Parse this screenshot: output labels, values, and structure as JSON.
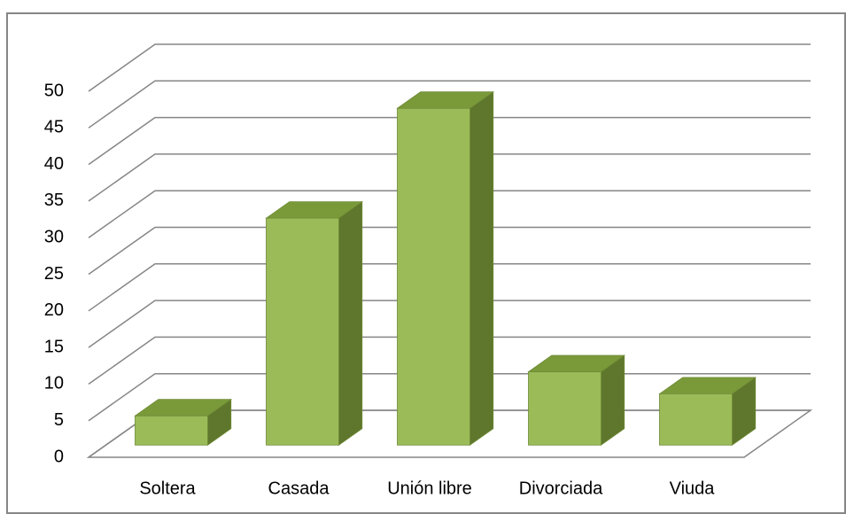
{
  "chart_data": {
    "type": "bar3d",
    "categories": [
      "Soltera",
      "Casada",
      "Unión libre",
      "Divorciada",
      "Viuda"
    ],
    "values": [
      4,
      31,
      46,
      10,
      7
    ],
    "color": "#9bbb59",
    "ylim": [
      0,
      50
    ],
    "yticks": [
      0,
      5,
      10,
      15,
      20,
      25,
      30,
      35,
      40,
      45,
      50
    ],
    "grid": true
  }
}
